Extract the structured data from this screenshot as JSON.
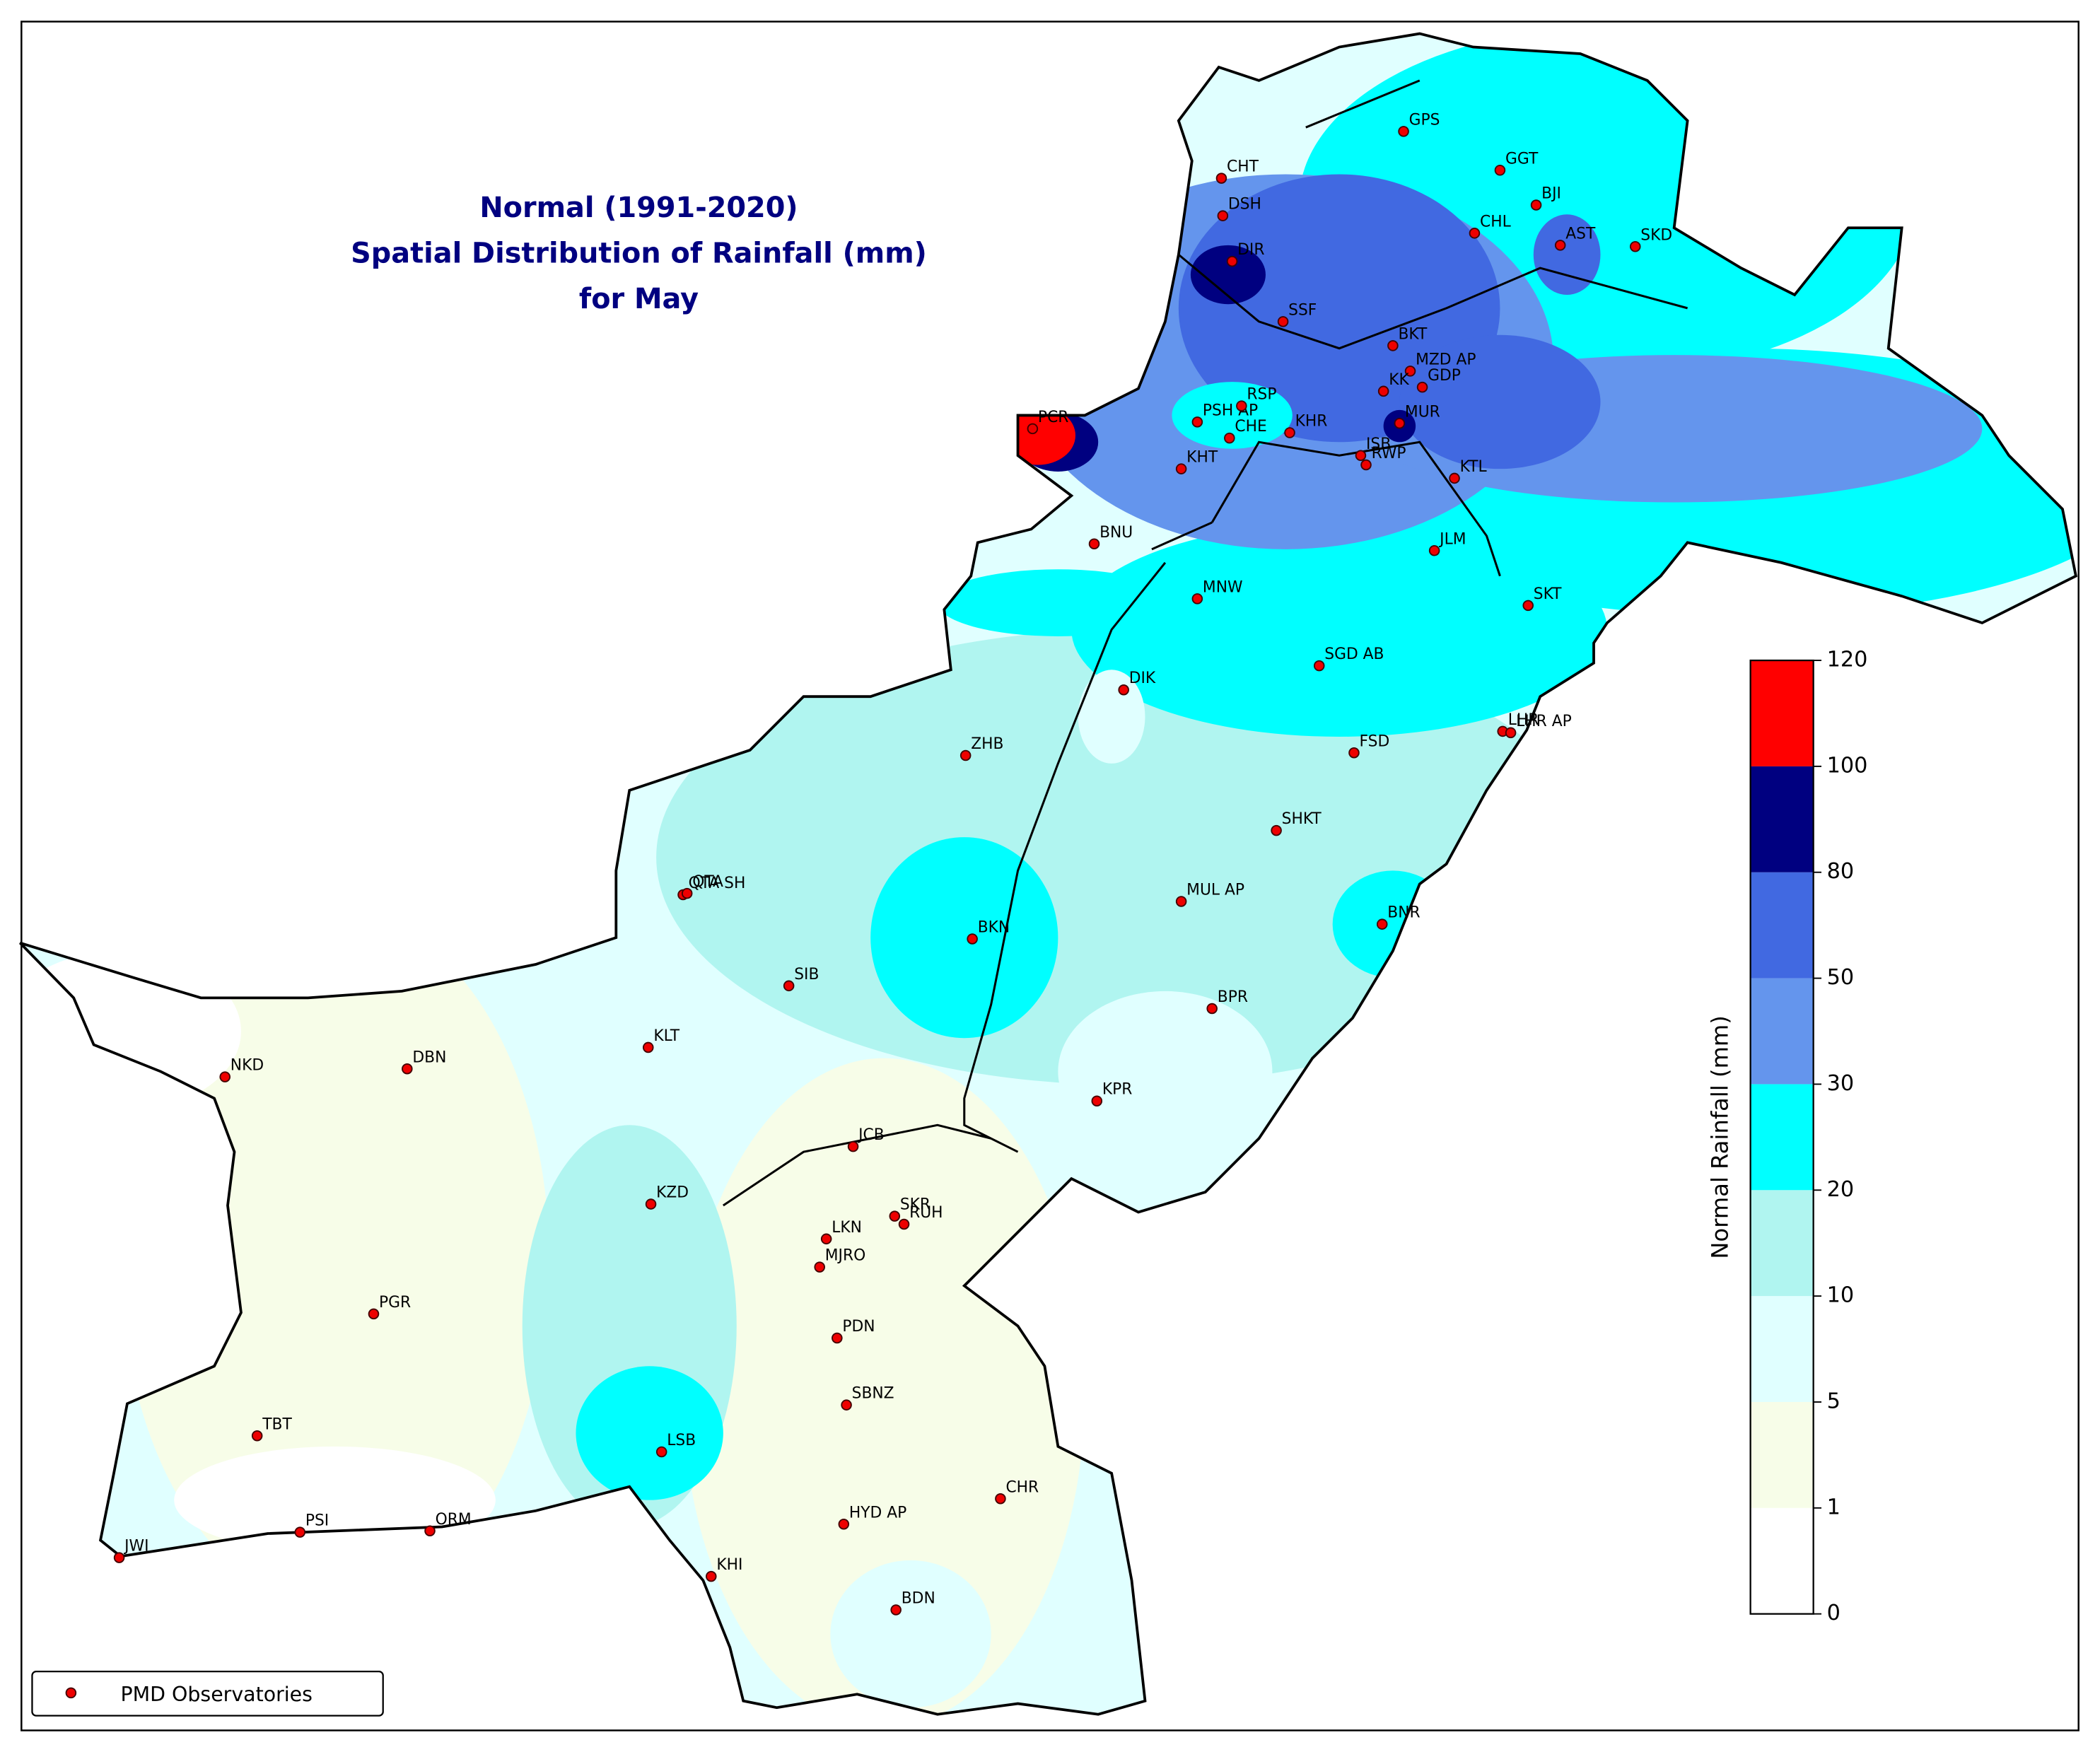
{
  "title": {
    "line1": "Normal (1991-2020)",
    "line2": "Spatial Distribution of Rainfall (mm)",
    "line3": "for May"
  },
  "colorbar": {
    "label": "Normal Rainfall (mm)",
    "ticks": [
      0,
      1,
      5,
      10,
      20,
      30,
      50,
      80,
      100,
      120
    ],
    "colors": [
      "#ffffff",
      "#f7fde8",
      "#e0ffff",
      "#b0f5f0",
      "#00ffff",
      "#6495ed",
      "#4169e1",
      "#000080",
      "#ff0000"
    ]
  },
  "legend": {
    "label": "PMD Observatories"
  },
  "stations": [
    "CHT",
    "DSH",
    "DIR",
    "SSF",
    "GPS",
    "GGT",
    "BJI",
    "CHL",
    "AST",
    "SKD",
    "BKT",
    "MZD AP",
    "KK",
    "GDP",
    "PSH AP",
    "RSP",
    "CHE",
    "KHR",
    "MUR",
    "PCR",
    "KHT",
    "ISB",
    "RWP",
    "KTL",
    "BNU",
    "JLM",
    "MNW",
    "SKT",
    "SGD AB",
    "DIK",
    "LHR",
    "LHR AP",
    "ZHB",
    "FSD",
    "SHKT",
    "QTA SH",
    "QTA",
    "MUL AP",
    "BKN",
    "BNR",
    "SIB",
    "BPR",
    "KLT",
    "NKD",
    "DBN",
    "KPR",
    "JCB",
    "KZD",
    "SKR",
    "RUH",
    "LKN",
    "MJRO",
    "PGR",
    "PDN",
    "SBNZ",
    "TBT",
    "LSB",
    "CHR",
    "HYD AP",
    "PSI",
    "ORM",
    "JWI",
    "KHI",
    "BDN"
  ]
}
